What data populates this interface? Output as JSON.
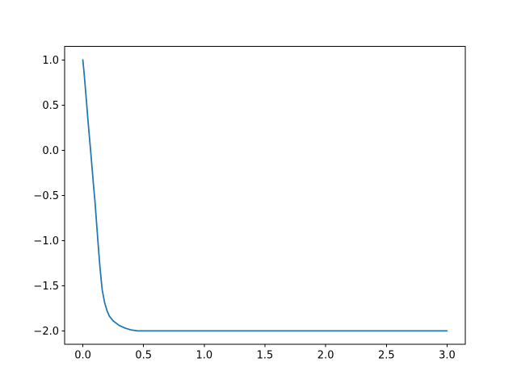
{
  "figure": {
    "background": "#ffffff"
  },
  "chart_data": {
    "type": "line",
    "title": "",
    "xlabel": "",
    "ylabel": "",
    "grid": false,
    "legend": null,
    "xlim": [
      -0.15,
      3.15
    ],
    "ylim": [
      -2.15,
      1.15
    ],
    "xticks": [
      0.0,
      0.5,
      1.0,
      1.5,
      2.0,
      2.5,
      3.0
    ],
    "xtick_labels": [
      "0.0",
      "0.5",
      "1.0",
      "1.5",
      "2.0",
      "2.5",
      "3.0"
    ],
    "yticks": [
      1.0,
      0.5,
      0.0,
      -0.5,
      -1.0,
      -1.5,
      -2.0
    ],
    "ytick_labels": [
      "1.0",
      "0.5",
      "0.0",
      "−0.5",
      "−1.0",
      "−1.5",
      "−2.0"
    ],
    "series": [
      {
        "name": "series-0",
        "color": "#1f77b4",
        "shape_note": "steep decay from (0, 1.0) levelling off to a constant -2.0 by x = 0.5, flat through x = 3.0",
        "x": [
          0.0,
          0.01,
          0.02,
          0.03,
          0.04,
          0.05,
          0.06,
          0.07,
          0.08,
          0.09,
          0.1,
          0.11,
          0.12,
          0.13,
          0.14,
          0.15,
          0.16,
          0.18,
          0.2,
          0.22,
          0.25,
          0.3,
          0.35,
          0.4,
          0.45,
          0.5,
          0.6,
          0.8,
          1.0,
          1.25,
          1.5,
          1.75,
          2.0,
          2.25,
          2.5,
          2.75,
          3.0
        ],
        "y": [
          1.0,
          0.86,
          0.7,
          0.54,
          0.37,
          0.21,
          0.06,
          -0.1,
          -0.26,
          -0.42,
          -0.57,
          -0.75,
          -0.93,
          -1.11,
          -1.28,
          -1.42,
          -1.55,
          -1.69,
          -1.78,
          -1.84,
          -1.89,
          -1.94,
          -1.97,
          -1.99,
          -2.0,
          -2.0,
          -2.0,
          -2.0,
          -2.0,
          -2.0,
          -2.0,
          -2.0,
          -2.0,
          -2.0,
          -2.0,
          -2.0,
          -2.0
        ]
      }
    ],
    "colors": {
      "line": "#1f77b4",
      "spine": "#000000",
      "tick": "#000000",
      "tick_label": "#000000",
      "background": "#ffffff"
    }
  }
}
